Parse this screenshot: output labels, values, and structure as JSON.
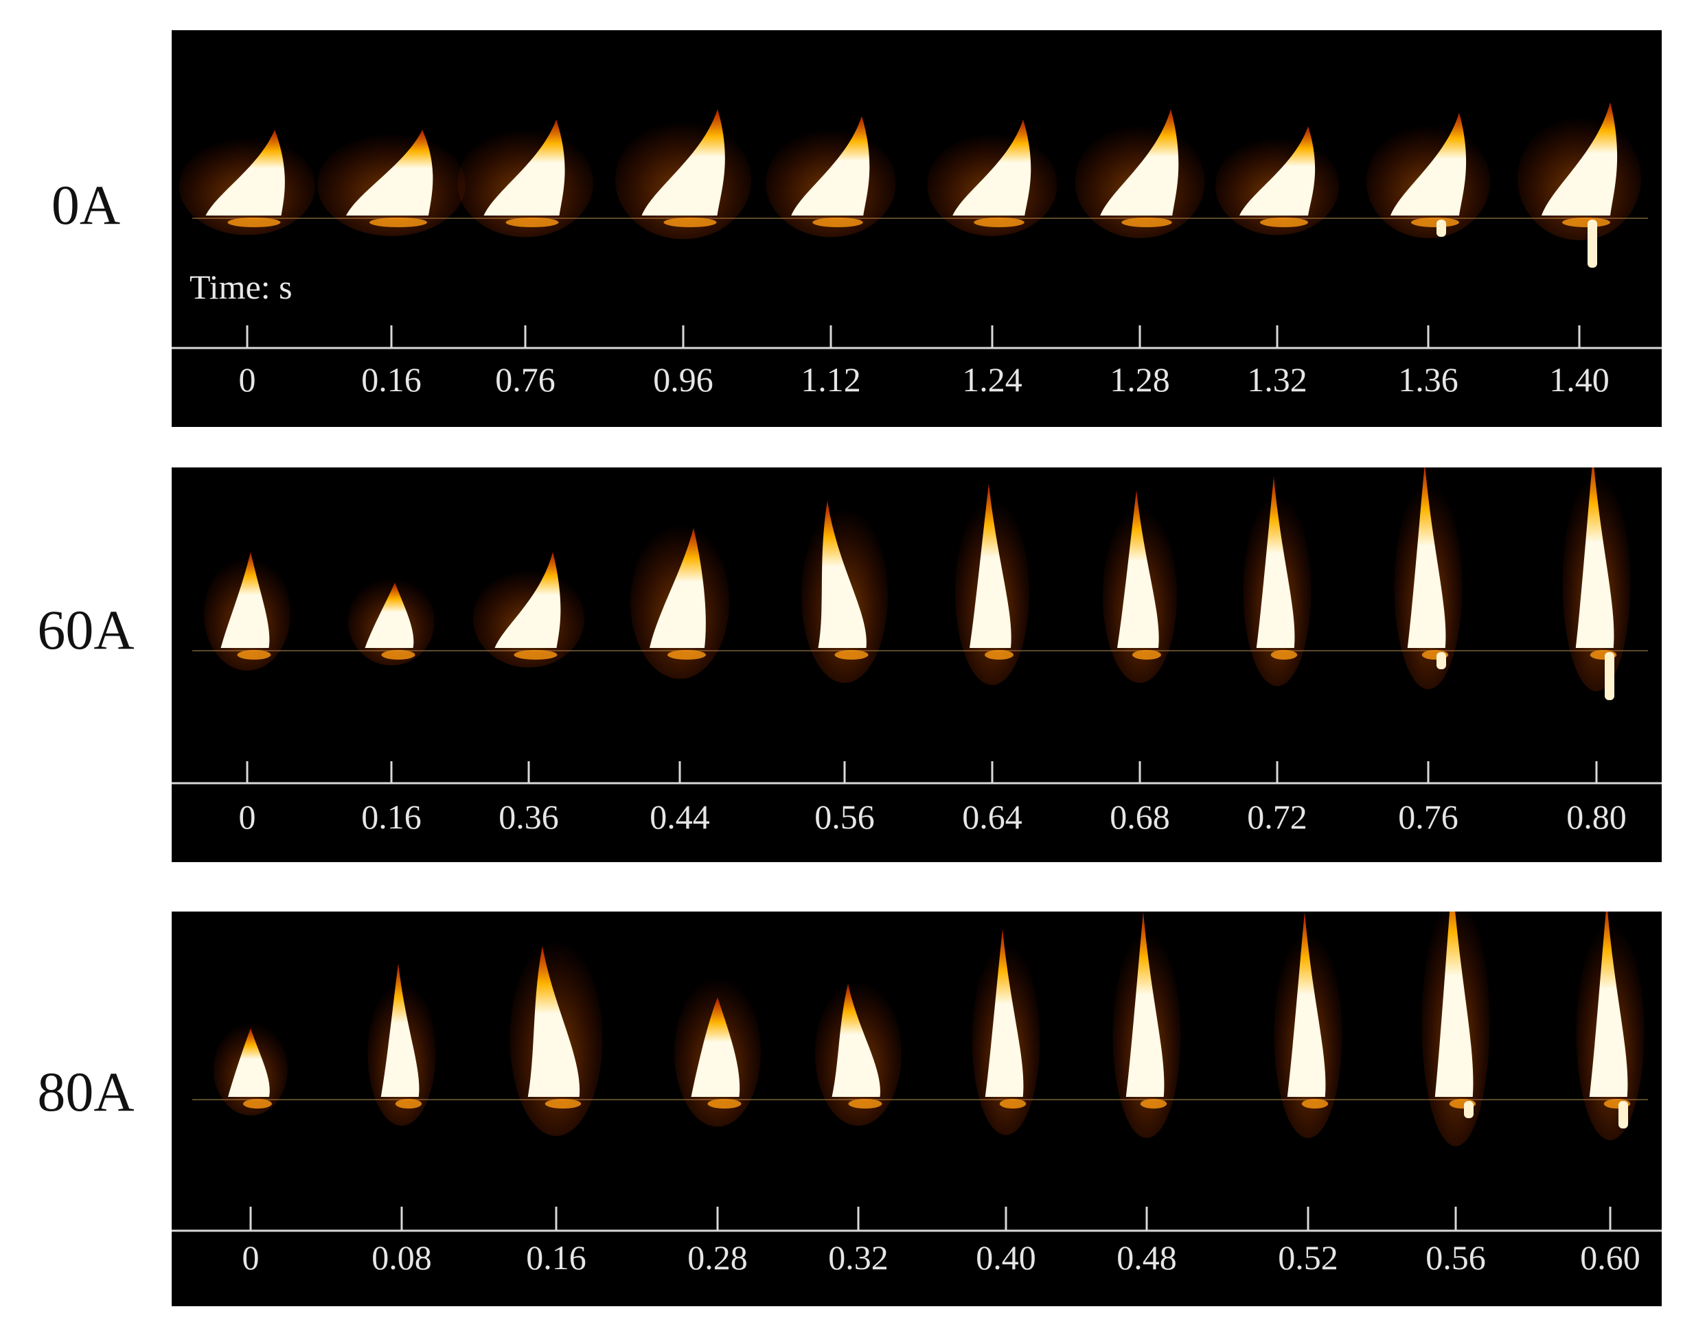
{
  "figure": {
    "time_unit_label": "Time: s",
    "rows": [
      {
        "label": "0A",
        "times": [
          "0",
          "0.16",
          "0.76",
          "0.96",
          "1.12",
          "1.24",
          "1.28",
          "1.32",
          "1.36",
          "1.40"
        ]
      },
      {
        "label": "60A",
        "times": [
          "0",
          "0.16",
          "0.36",
          "0.44",
          "0.56",
          "0.64",
          "0.68",
          "0.72",
          "0.76",
          "0.80"
        ]
      },
      {
        "label": "80A",
        "times": [
          "0",
          "0.08",
          "0.16",
          "0.28",
          "0.32",
          "0.40",
          "0.48",
          "0.52",
          "0.56",
          "0.60"
        ]
      }
    ]
  },
  "colors": {
    "panel_background": "#000000",
    "axis_line": "#d9d9d9",
    "flame_core": "#fffbe8",
    "flame_mid": "#ffb400",
    "flame_edge": "#c81e00"
  }
}
